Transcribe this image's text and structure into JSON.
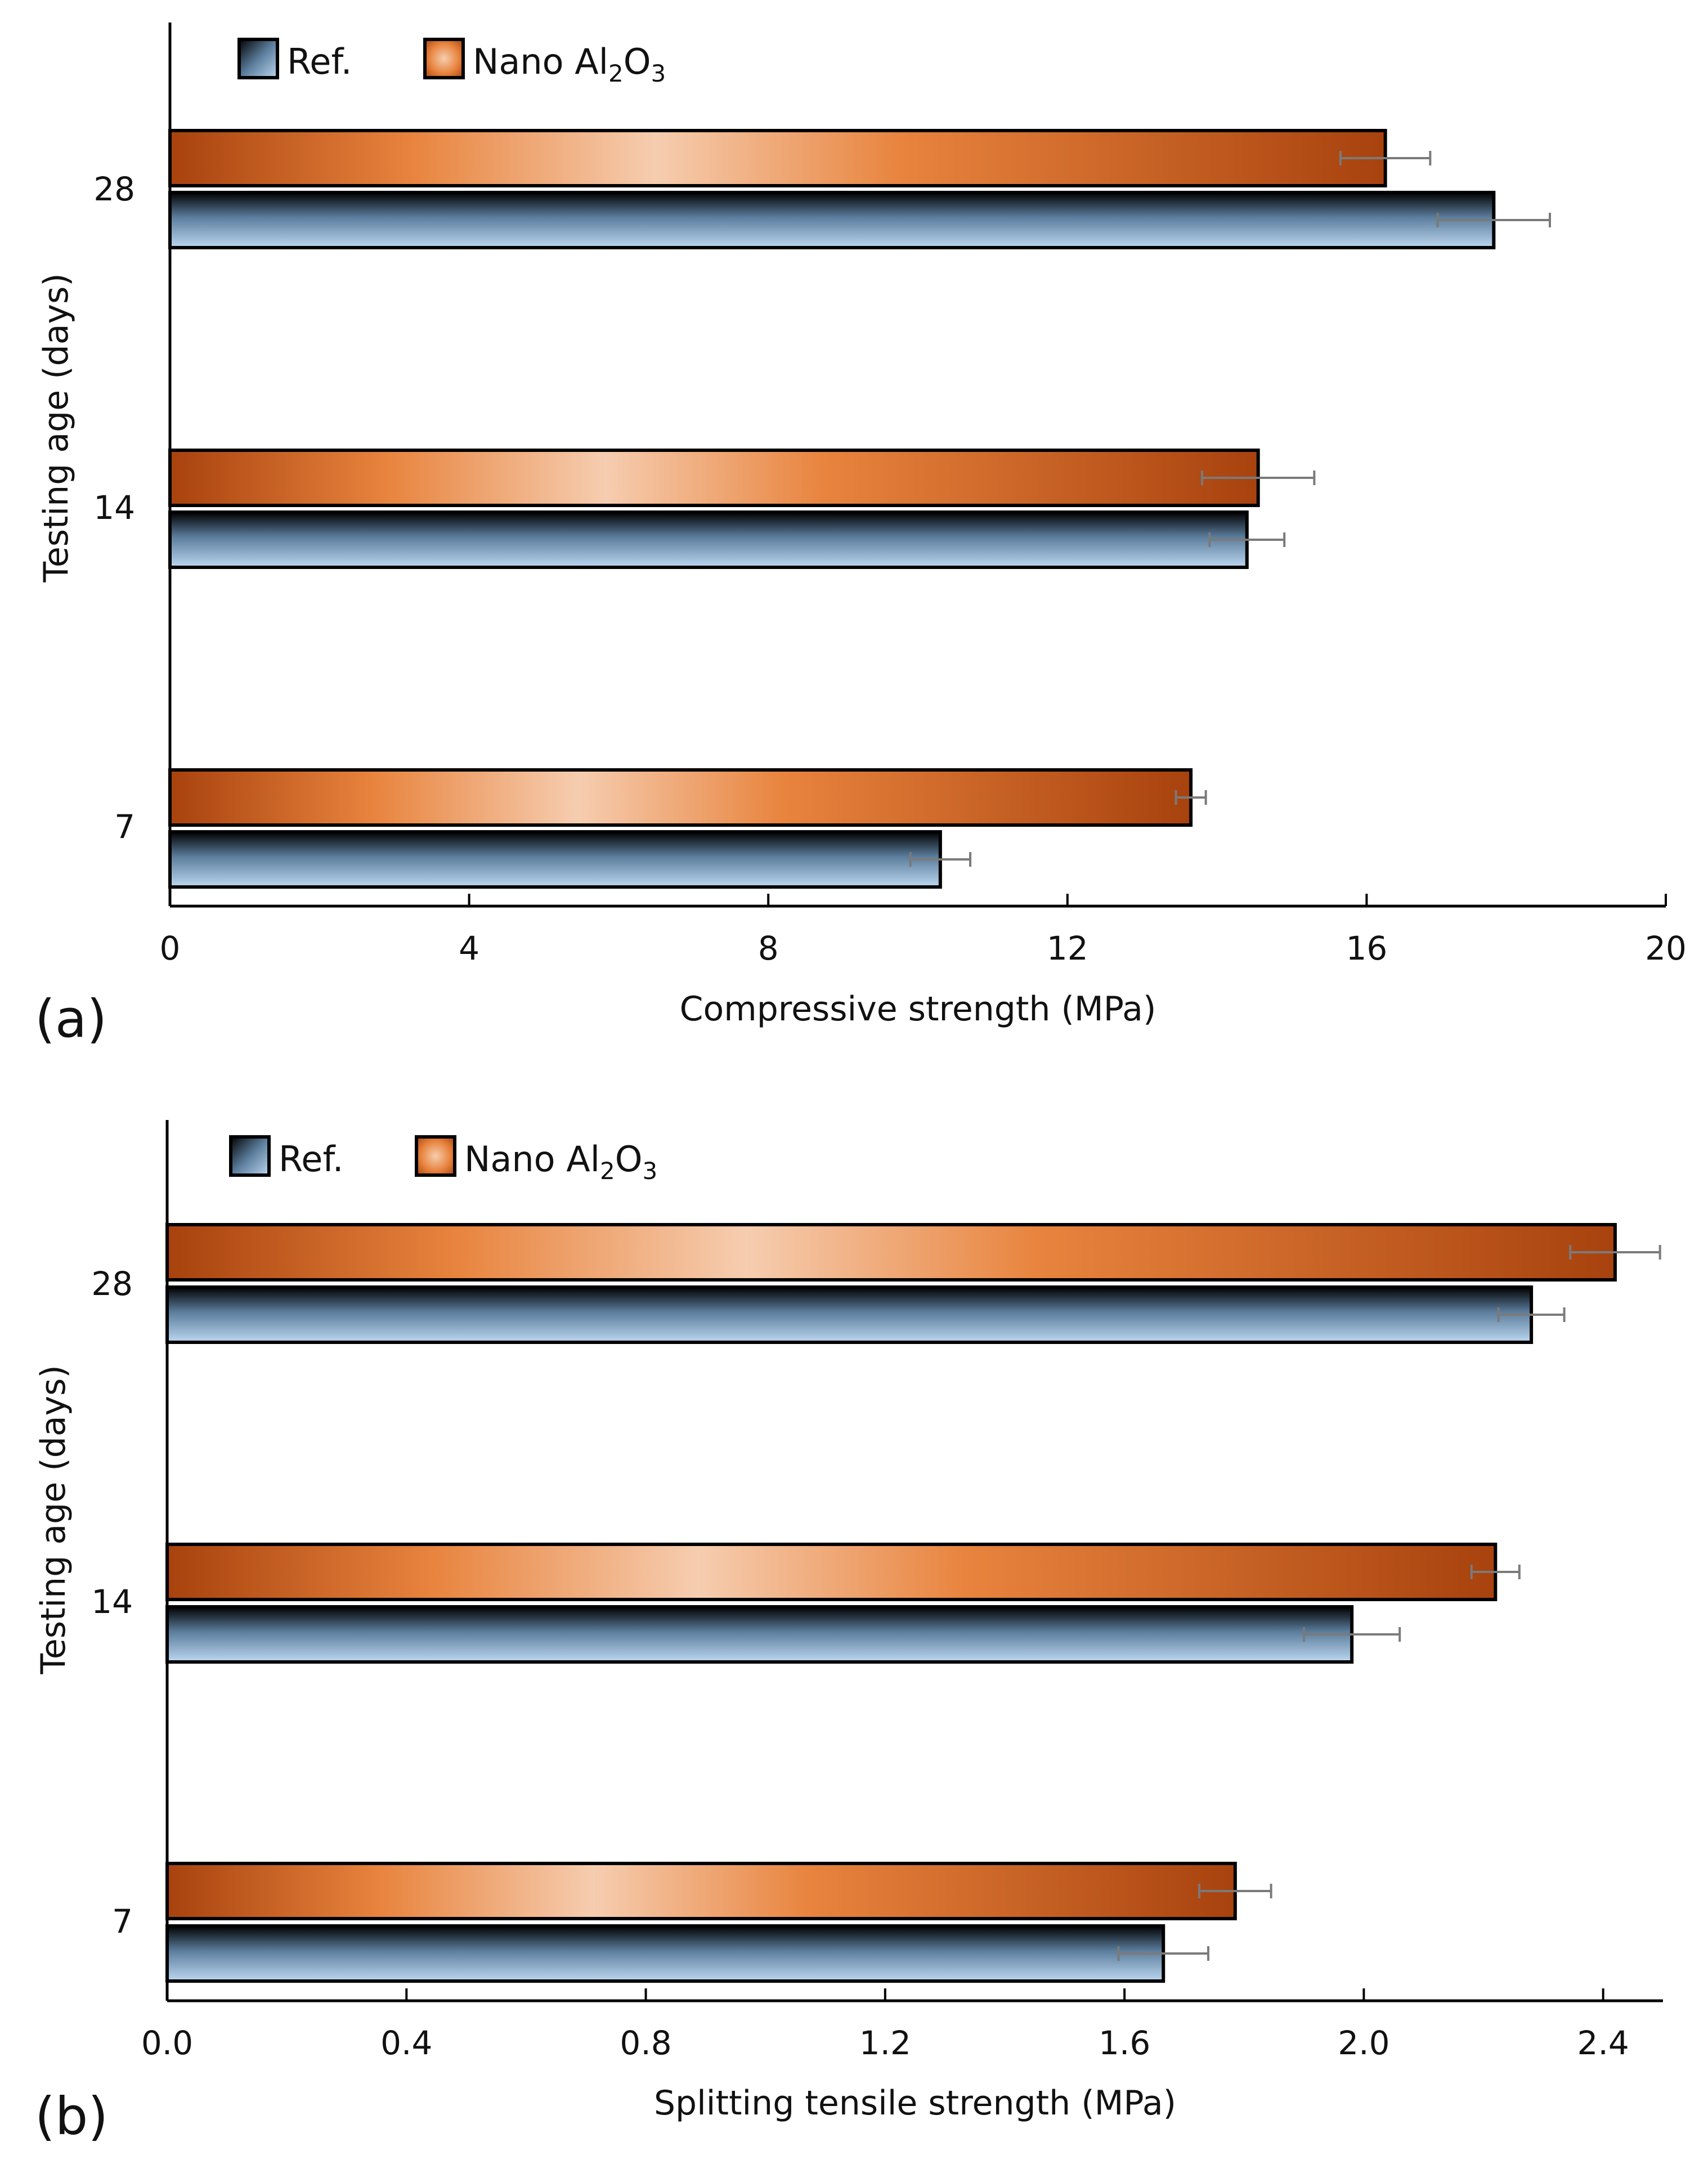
{
  "chart_data": [
    {
      "type": "bar",
      "orientation": "horizontal",
      "panel_label": "(a)",
      "categories": [
        "7",
        "14",
        "28"
      ],
      "xlabel": "Compressive strength (MPa)",
      "ylabel": "Testing age (days)",
      "xlim": [
        0,
        20
      ],
      "xticks": [
        "0",
        "4",
        "8",
        "12",
        "16",
        "20"
      ],
      "grid": false,
      "legend_position": "top-left",
      "series": [
        {
          "name": "Ref.",
          "values": [
            10.3,
            14.4,
            17.7
          ],
          "errors": [
            0.4,
            0.5,
            0.75
          ]
        },
        {
          "name": "Nano Al",
          "name_sub1": "2",
          "name_mid": "O",
          "name_sub2": "3",
          "values": [
            13.65,
            14.55,
            16.25
          ],
          "errors": [
            0.2,
            0.75,
            0.6
          ]
        }
      ]
    },
    {
      "type": "bar",
      "orientation": "horizontal",
      "panel_label": "(b)",
      "categories": [
        "7",
        "14",
        "28"
      ],
      "xlabel": "Splitting tensile strength (MPa)",
      "ylabel": "Testing age (days)",
      "xlim": [
        0,
        2.5
      ],
      "xticks": [
        "0.0",
        "0.4",
        "0.8",
        "1.2",
        "1.6",
        "2.0",
        "2.4"
      ],
      "grid": false,
      "legend_position": "top-left",
      "series": [
        {
          "name": "Ref.",
          "values": [
            1.665,
            1.98,
            2.28
          ],
          "errors": [
            0.075,
            0.08,
            0.055
          ]
        },
        {
          "name": "Nano Al",
          "name_sub1": "2",
          "name_mid": "O",
          "name_sub2": "3",
          "values": [
            1.785,
            2.22,
            2.42
          ],
          "errors": [
            0.06,
            0.04,
            0.075
          ]
        }
      ]
    }
  ],
  "colors": {
    "ref_dark": "#000000",
    "ref_mid": "#5b7d9c",
    "ref_light": "#bcd7f0",
    "nano_dark": "#a8420e",
    "nano_mid": "#e8843e",
    "nano_light": "#f6cdb0",
    "error_bar": "#7a7a7a"
  }
}
